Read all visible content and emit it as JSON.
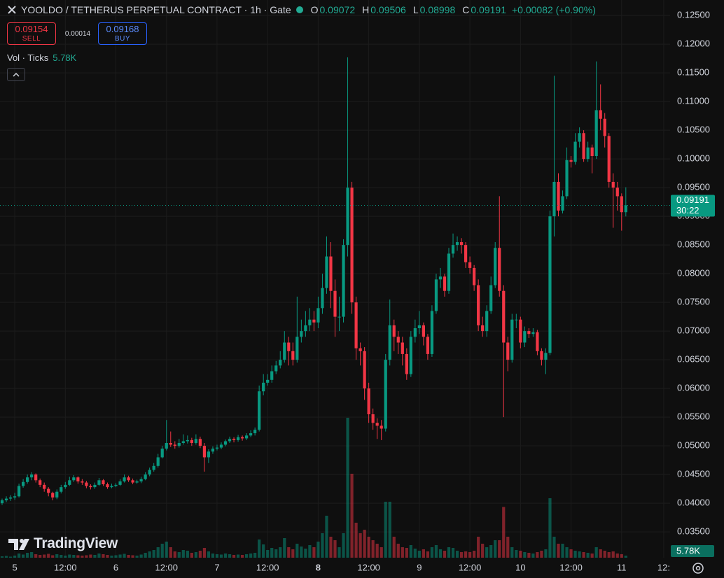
{
  "header": {
    "symbol": "YOOLDO / TETHERUS PERPETUAL CONTRACT · 1h · Gate",
    "o_label": "O",
    "h_label": "H",
    "l_label": "L",
    "c_label": "C",
    "change": "+0.00082 (+0.90%)",
    "sell_price": "0.09154",
    "sell": "SELL",
    "spread": "0.00014",
    "buy_price": "0.09168",
    "buy": "BUY",
    "volume_title": "Vol · Ticks",
    "countdown": "30:22",
    "brand": "TradingView"
  },
  "chart_data": {
    "type": "candlestick",
    "up_color": "#089981",
    "down_color": "#f23645",
    "grid": true,
    "xlim": [
      -0.5,
      158.5
    ],
    "ylim": [
      0.0305,
      0.1277
    ],
    "xticks": [
      {
        "value": 3,
        "label": "5"
      },
      {
        "value": 15,
        "label": "12:00"
      },
      {
        "value": 27,
        "label": "6"
      },
      {
        "value": 39,
        "label": "12:00"
      },
      {
        "value": 51,
        "label": "7"
      },
      {
        "value": 63,
        "label": "12:00"
      },
      {
        "value": 75,
        "label": "8",
        "bold": true
      },
      {
        "value": 87,
        "label": "12:00"
      },
      {
        "value": 99,
        "label": "9"
      },
      {
        "value": 111,
        "label": "12:00"
      },
      {
        "value": 123,
        "label": "10"
      },
      {
        "value": 135,
        "label": "12:00"
      },
      {
        "value": 147,
        "label": "11"
      },
      {
        "value": 157,
        "label": "12:"
      }
    ],
    "yticks": [
      {
        "value": 0.035,
        "label": "0.03500"
      },
      {
        "value": 0.04,
        "label": "0.04000"
      },
      {
        "value": 0.045,
        "label": "0.04500"
      },
      {
        "value": 0.05,
        "label": "0.05000"
      },
      {
        "value": 0.055,
        "label": "0.05500"
      },
      {
        "value": 0.06,
        "label": "0.06000"
      },
      {
        "value": 0.065,
        "label": "0.06500"
      },
      {
        "value": 0.07,
        "label": "0.07000"
      },
      {
        "value": 0.075,
        "label": "0.07500"
      },
      {
        "value": 0.08,
        "label": "0.08000"
      },
      {
        "value": 0.085,
        "label": "0.08500"
      },
      {
        "value": 0.09,
        "label": "0.09000"
      },
      {
        "value": 0.095,
        "label": "0.09500"
      },
      {
        "value": 0.1,
        "label": "0.10000"
      },
      {
        "value": 0.105,
        "label": "0.10500"
      },
      {
        "value": 0.11,
        "label": "0.11000"
      },
      {
        "value": 0.115,
        "label": "0.11500"
      },
      {
        "value": 0.12,
        "label": "0.12000"
      },
      {
        "value": 0.125,
        "label": "0.12500"
      }
    ],
    "open": [
      0.04,
      0.0405,
      0.0408,
      0.041,
      0.0412,
      0.043,
      0.0437,
      0.0445,
      0.045,
      0.044,
      0.0432,
      0.0425,
      0.0418,
      0.041,
      0.042,
      0.0428,
      0.0432,
      0.044,
      0.0445,
      0.0438,
      0.0436,
      0.043,
      0.0428,
      0.0432,
      0.044,
      0.0433,
      0.0428,
      0.043,
      0.0432,
      0.0438,
      0.0445,
      0.044,
      0.0436,
      0.0438,
      0.0442,
      0.045,
      0.0458,
      0.0465,
      0.048,
      0.0495,
      0.0505,
      0.0502,
      0.05,
      0.0505,
      0.0508,
      0.051,
      0.0505,
      0.0512,
      0.05,
      0.048,
      0.049,
      0.0495,
      0.0497,
      0.0502,
      0.0508,
      0.0512,
      0.051,
      0.0515,
      0.0513,
      0.0518,
      0.0522,
      0.0528,
      0.0595,
      0.061,
      0.0615,
      0.063,
      0.064,
      0.065,
      0.068,
      0.0665,
      0.065,
      0.069,
      0.07,
      0.071,
      0.072,
      0.0715,
      0.074,
      0.0775,
      0.083,
      0.077,
      0.0725,
      0.0725,
      0.085,
      0.095,
      0.075,
      0.067,
      0.0665,
      0.06,
      0.0555,
      0.054,
      0.0535,
      0.053,
      0.065,
      0.071,
      0.069,
      0.068,
      0.066,
      0.0625,
      0.069,
      0.0705,
      0.071,
      0.069,
      0.066,
      0.0735,
      0.079,
      0.0795,
      0.077,
      0.0835,
      0.085,
      0.0855,
      0.085,
      0.082,
      0.081,
      0.078,
      0.071,
      0.07,
      0.0735,
      0.078,
      0.0845,
      0.077,
      0.068,
      0.065,
      0.072,
      0.072,
      0.068,
      0.07,
      0.0695,
      0.0698,
      0.0665,
      0.065,
      0.0662,
      0.09,
      0.096,
      0.091,
      0.0935,
      0.0998,
      0.0995,
      0.103,
      0.1045,
      0.1,
      0.102,
      0.1005,
      0.1085,
      0.107,
      0.104,
      0.096,
      0.095,
      0.0935,
      0.09072
    ],
    "high": [
      0.0408,
      0.0412,
      0.0414,
      0.0418,
      0.0434,
      0.0442,
      0.045,
      0.0454,
      0.0452,
      0.0443,
      0.0436,
      0.0428,
      0.042,
      0.0424,
      0.0432,
      0.0437,
      0.0446,
      0.0449,
      0.0447,
      0.0442,
      0.0439,
      0.0433,
      0.0436,
      0.0444,
      0.0442,
      0.0436,
      0.0434,
      0.0435,
      0.0442,
      0.045,
      0.0448,
      0.0443,
      0.0441,
      0.0446,
      0.0454,
      0.0462,
      0.047,
      0.0486,
      0.05,
      0.0545,
      0.0525,
      0.0508,
      0.0512,
      0.052,
      0.0518,
      0.0514,
      0.052,
      0.0516,
      0.0505,
      0.0494,
      0.0499,
      0.0502,
      0.0506,
      0.0511,
      0.0516,
      0.0515,
      0.0519,
      0.0518,
      0.0522,
      0.0527,
      0.0532,
      0.0605,
      0.0625,
      0.0625,
      0.064,
      0.0648,
      0.0665,
      0.07,
      0.069,
      0.068,
      0.076,
      0.072,
      0.0735,
      0.074,
      0.0735,
      0.076,
      0.08,
      0.0865,
      0.0855,
      0.079,
      0.076,
      0.086,
      0.1177,
      0.096,
      0.076,
      0.068,
      0.0672,
      0.061,
      0.0565,
      0.0548,
      0.0545,
      0.066,
      0.0755,
      0.072,
      0.07,
      0.069,
      0.067,
      0.07,
      0.072,
      0.0735,
      0.0715,
      0.0695,
      0.0745,
      0.08,
      0.081,
      0.08,
      0.0845,
      0.087,
      0.0865,
      0.0862,
      0.0855,
      0.083,
      0.0815,
      0.079,
      0.0725,
      0.0745,
      0.0795,
      0.0855,
      0.0935,
      0.078,
      0.069,
      0.073,
      0.073,
      0.0725,
      0.0708,
      0.0705,
      0.0705,
      0.0702,
      0.067,
      0.067,
      0.091,
      0.1145,
      0.0975,
      0.0945,
      0.102,
      0.1005,
      0.1045,
      0.1055,
      0.105,
      0.103,
      0.1025,
      0.117,
      0.113,
      0.108,
      0.1045,
      0.0975,
      0.096,
      0.094,
      0.09506
    ],
    "low": [
      0.0397,
      0.0402,
      0.0404,
      0.0406,
      0.041,
      0.0427,
      0.0434,
      0.044,
      0.0436,
      0.0428,
      0.042,
      0.0412,
      0.0405,
      0.0407,
      0.0417,
      0.0425,
      0.043,
      0.0437,
      0.0434,
      0.0432,
      0.0426,
      0.0424,
      0.0425,
      0.043,
      0.043,
      0.0425,
      0.0426,
      0.0428,
      0.043,
      0.0436,
      0.0437,
      0.0433,
      0.0434,
      0.0435,
      0.044,
      0.0447,
      0.0455,
      0.0462,
      0.0478,
      0.0492,
      0.0498,
      0.0495,
      0.0497,
      0.0502,
      0.0504,
      0.05,
      0.0502,
      0.0496,
      0.0455,
      0.047,
      0.0486,
      0.0492,
      0.0494,
      0.0499,
      0.0505,
      0.0506,
      0.0507,
      0.0509,
      0.051,
      0.0515,
      0.0518,
      0.0525,
      0.0588,
      0.0605,
      0.061,
      0.0625,
      0.0635,
      0.0645,
      0.064,
      0.064,
      0.0645,
      0.068,
      0.069,
      0.07,
      0.07,
      0.0705,
      0.073,
      0.0765,
      0.074,
      0.069,
      0.07,
      0.0715,
      0.083,
      0.073,
      0.065,
      0.064,
      0.058,
      0.054,
      0.0528,
      0.0512,
      0.051,
      0.0525,
      0.064,
      0.0665,
      0.066,
      0.064,
      0.0615,
      0.062,
      0.068,
      0.0695,
      0.0675,
      0.065,
      0.0655,
      0.073,
      0.0775,
      0.076,
      0.0765,
      0.0828,
      0.084,
      0.0835,
      0.081,
      0.08,
      0.077,
      0.07,
      0.069,
      0.069,
      0.073,
      0.0775,
      0.076,
      0.055,
      0.063,
      0.0645,
      0.0705,
      0.067,
      0.0672,
      0.0688,
      0.069,
      0.0658,
      0.064,
      0.0625,
      0.0658,
      0.0865,
      0.09,
      0.0905,
      0.093,
      0.0985,
      0.099,
      0.102,
      0.0995,
      0.0995,
      0.0975,
      0.1,
      0.105,
      0.102,
      0.095,
      0.088,
      0.091,
      0.0875,
      0.08998
    ],
    "close": [
      0.0405,
      0.0408,
      0.041,
      0.0412,
      0.043,
      0.0437,
      0.0445,
      0.045,
      0.044,
      0.0432,
      0.0425,
      0.0418,
      0.041,
      0.042,
      0.0428,
      0.0432,
      0.044,
      0.0445,
      0.0438,
      0.0436,
      0.043,
      0.0428,
      0.0432,
      0.044,
      0.0433,
      0.0428,
      0.043,
      0.0432,
      0.0438,
      0.0445,
      0.044,
      0.0436,
      0.0438,
      0.0442,
      0.045,
      0.0458,
      0.0465,
      0.048,
      0.0495,
      0.0505,
      0.0502,
      0.05,
      0.0505,
      0.0508,
      0.051,
      0.0505,
      0.0512,
      0.05,
      0.048,
      0.049,
      0.0495,
      0.0497,
      0.0502,
      0.0508,
      0.0512,
      0.051,
      0.0515,
      0.0513,
      0.0518,
      0.0522,
      0.0528,
      0.0595,
      0.061,
      0.0615,
      0.063,
      0.064,
      0.065,
      0.068,
      0.0665,
      0.065,
      0.069,
      0.07,
      0.071,
      0.072,
      0.0715,
      0.074,
      0.0775,
      0.083,
      0.077,
      0.0725,
      0.0725,
      0.085,
      0.095,
      0.075,
      0.067,
      0.0665,
      0.06,
      0.0555,
      0.054,
      0.0535,
      0.053,
      0.065,
      0.071,
      0.069,
      0.068,
      0.066,
      0.0625,
      0.069,
      0.0705,
      0.071,
      0.069,
      0.066,
      0.0735,
      0.079,
      0.0795,
      0.077,
      0.0835,
      0.085,
      0.0855,
      0.085,
      0.082,
      0.081,
      0.078,
      0.071,
      0.07,
      0.0735,
      0.078,
      0.0845,
      0.077,
      0.068,
      0.065,
      0.072,
      0.072,
      0.068,
      0.07,
      0.0695,
      0.0698,
      0.0665,
      0.065,
      0.0662,
      0.09,
      0.096,
      0.091,
      0.0935,
      0.0998,
      0.0995,
      0.103,
      0.1045,
      0.1,
      0.102,
      0.1005,
      0.1085,
      0.107,
      0.104,
      0.096,
      0.095,
      0.0935,
      0.09072,
      0.09191
    ],
    "volume": [
      4000,
      5000,
      3000,
      6000,
      12000,
      9000,
      14000,
      16000,
      10000,
      8000,
      9000,
      11000,
      7000,
      10000,
      8000,
      6000,
      9000,
      8000,
      7000,
      6000,
      7000,
      9000,
      8000,
      12000,
      10000,
      8000,
      6000,
      7000,
      9000,
      11000,
      8000,
      7000,
      6000,
      9000,
      14000,
      18000,
      22000,
      30000,
      40000,
      46000,
      30000,
      18000,
      16000,
      22000,
      20000,
      14000,
      16000,
      20000,
      28000,
      18000,
      12000,
      10000,
      9000,
      12000,
      10000,
      8000,
      9000,
      8000,
      10000,
      12000,
      14000,
      52000,
      38000,
      22000,
      28000,
      24000,
      30000,
      56000,
      30000,
      24000,
      40000,
      32000,
      26000,
      36000,
      30000,
      46000,
      70000,
      120000,
      60000,
      50000,
      30000,
      70000,
      400000,
      240000,
      100000,
      70000,
      80000,
      60000,
      50000,
      40000,
      30000,
      160000,
      160000,
      60000,
      40000,
      30000,
      28000,
      36000,
      26000,
      20000,
      24000,
      18000,
      30000,
      36000,
      24000,
      20000,
      30000,
      28000,
      20000,
      16000,
      18000,
      16000,
      20000,
      60000,
      40000,
      30000,
      36000,
      50000,
      50000,
      145000,
      60000,
      30000,
      22000,
      20000,
      16000,
      14000,
      12000,
      16000,
      20000,
      24000,
      170000,
      60000,
      40000,
      40000,
      30000,
      24000,
      20000,
      18000,
      16000,
      14000,
      12000,
      30000,
      24000,
      20000,
      16000,
      18000,
      12000,
      10000,
      5780
    ],
    "volume_label": "5.78K"
  }
}
